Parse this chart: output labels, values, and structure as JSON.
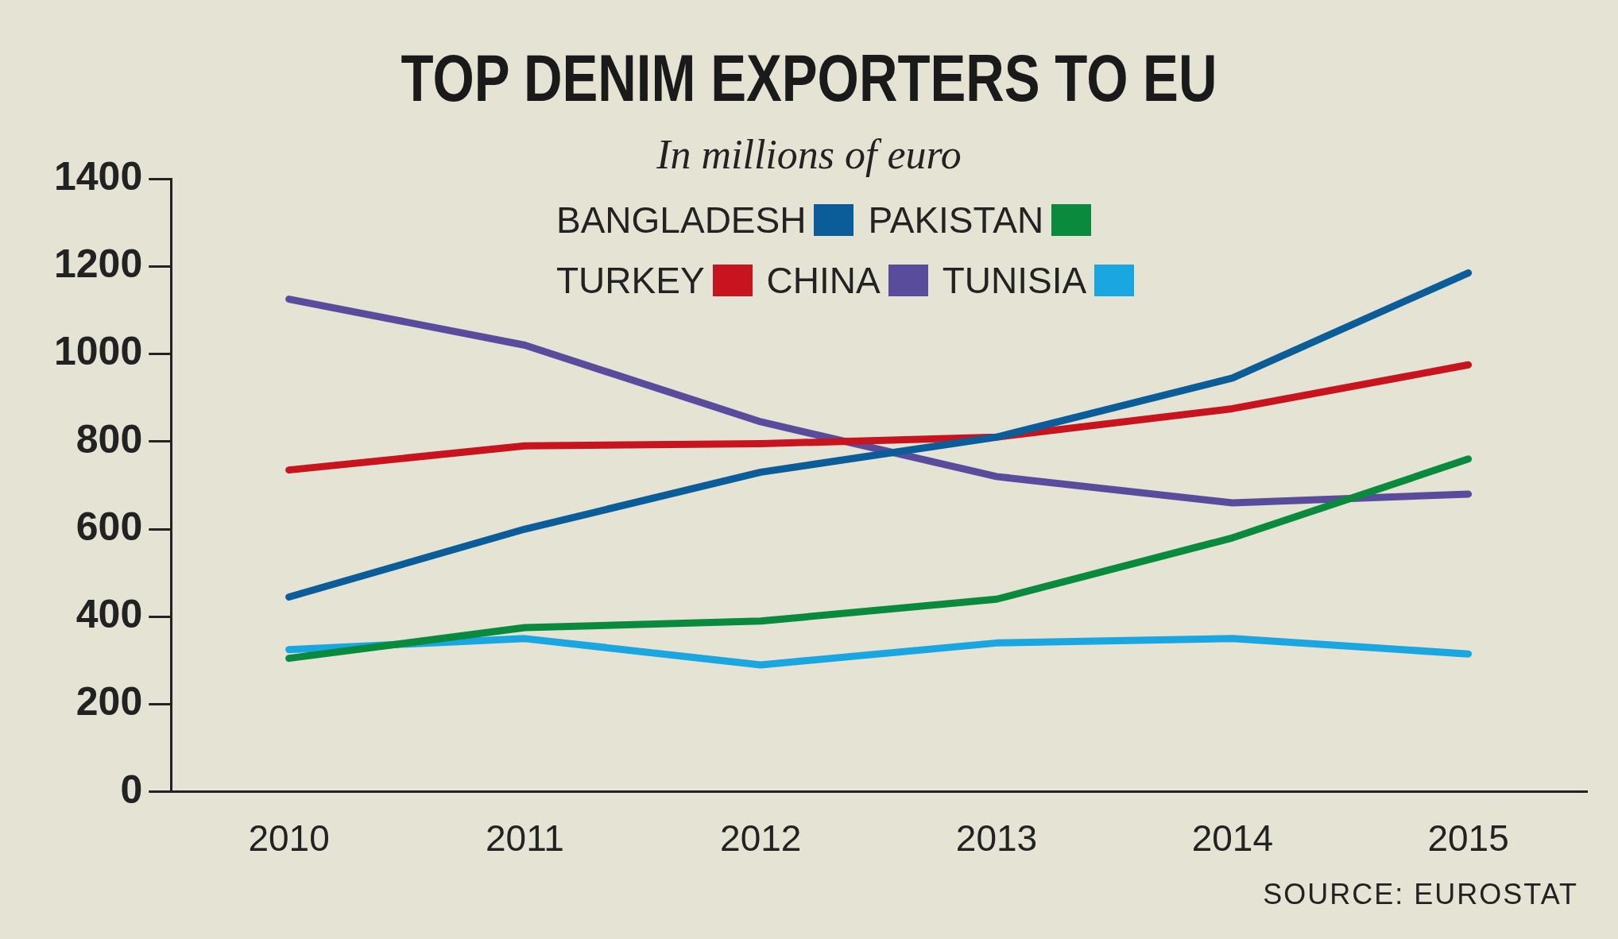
{
  "chart_data": {
    "type": "line",
    "title": "TOP DENIM EXPORTERS TO EU",
    "subtitle": "In millions of euro",
    "annotations": [
      "SOURCE: EUROSTAT"
    ],
    "categories": [
      "2010",
      "2011",
      "2012",
      "2013",
      "2014",
      "2015"
    ],
    "series": [
      {
        "name": "BANGLADESH",
        "color": "#0b5d9a",
        "values": [
          445,
          600,
          730,
          810,
          945,
          1185
        ]
      },
      {
        "name": "PAKISTAN",
        "color": "#0a8a3c",
        "values": [
          305,
          375,
          390,
          440,
          580,
          760
        ]
      },
      {
        "name": "TURKEY",
        "color": "#c8141e",
        "values": [
          735,
          790,
          795,
          810,
          875,
          975
        ]
      },
      {
        "name": "CHINA",
        "color": "#5a4c9c",
        "values": [
          1125,
          1020,
          845,
          720,
          660,
          680
        ]
      },
      {
        "name": "TUNISIA",
        "color": "#1aa6e0",
        "values": [
          325,
          350,
          290,
          340,
          350,
          315
        ]
      }
    ],
    "ylim": [
      0,
      1400
    ],
    "yticks": [
      0,
      200,
      400,
      600,
      800,
      1000,
      1200,
      1400
    ],
    "grid": false,
    "legend": "top",
    "marker": "none",
    "line_style": "solid"
  }
}
